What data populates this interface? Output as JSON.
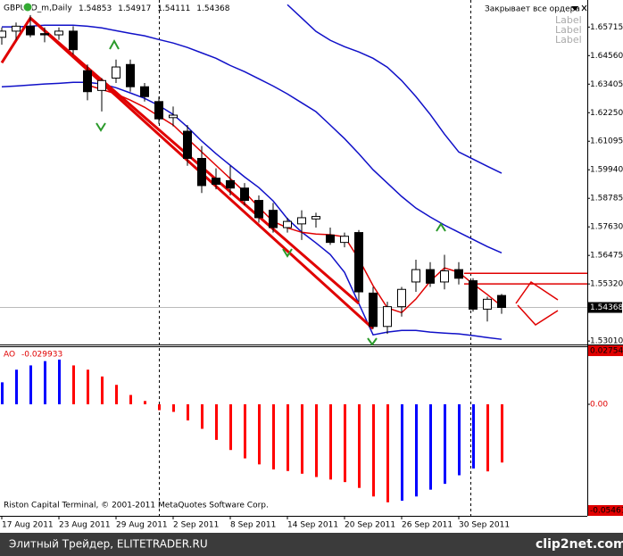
{
  "header": {
    "symbol": "GBPUSD_m,Daily",
    "button": "Закрывает все ордера",
    "labels": [
      "Label",
      "Label",
      "Label"
    ],
    "copyright": "Riston Capital Terminal, © 2001-2011 MetaQuotes Software Corp."
  },
  "footer": {
    "left": "Элитный Трейдер, ELITETRADER.RU",
    "right": "clip2net.com"
  },
  "chart_data": [
    {
      "type": "candlestick",
      "categories": [
        "17 Aug 2011",
        null,
        null,
        null,
        "23 Aug 2011",
        null,
        null,
        null,
        "29 Aug 2011",
        null,
        null,
        null,
        "2 Sep 2011",
        null,
        null,
        null,
        "8 Sep 2011",
        null,
        null,
        null,
        "14 Sep 2011",
        null,
        null,
        null,
        "20 Sep 2011",
        null,
        null,
        null,
        "26 Sep 2011",
        null,
        null,
        null,
        "30 Sep 2011",
        null,
        null,
        null
      ],
      "open": [
        1.653,
        1.6555,
        1.6575,
        1.6545,
        1.654,
        1.6555,
        1.6395,
        1.6315,
        1.6365,
        1.642,
        1.633,
        1.627,
        1.6205,
        1.615,
        1.604,
        1.596,
        1.595,
        1.592,
        1.587,
        1.583,
        1.576,
        1.5775,
        1.5795,
        1.573,
        1.57,
        1.574,
        1.5495,
        1.536,
        1.544,
        1.554,
        1.559,
        1.554,
        1.559,
        1.5545,
        1.543,
        1.54853
      ],
      "high": [
        1.657,
        1.659,
        1.662,
        1.657,
        1.657,
        1.6575,
        1.642,
        1.6365,
        1.644,
        1.644,
        1.6345,
        1.629,
        1.625,
        1.6175,
        1.609,
        1.6,
        1.601,
        1.594,
        1.589,
        1.586,
        1.58,
        1.583,
        1.582,
        1.576,
        1.574,
        1.575,
        1.552,
        1.546,
        1.552,
        1.563,
        1.562,
        1.565,
        1.562,
        1.5555,
        1.548,
        1.54917
      ],
      "low": [
        1.65,
        1.652,
        1.653,
        1.651,
        1.652,
        1.646,
        1.6275,
        1.623,
        1.6345,
        1.631,
        1.627,
        1.618,
        1.617,
        1.601,
        1.59,
        1.5915,
        1.589,
        1.585,
        1.578,
        1.574,
        1.574,
        1.571,
        1.576,
        1.569,
        1.568,
        1.546,
        1.535,
        1.533,
        1.54,
        1.55,
        1.552,
        1.551,
        1.553,
        1.542,
        1.538,
        1.54111
      ],
      "close": [
        1.6555,
        1.6575,
        1.654,
        1.654,
        1.6555,
        1.648,
        1.631,
        1.6355,
        1.641,
        1.633,
        1.629,
        1.62,
        1.6215,
        1.604,
        1.593,
        1.5935,
        1.592,
        1.587,
        1.58,
        1.576,
        1.5785,
        1.58,
        1.5805,
        1.57,
        1.5725,
        1.55,
        1.536,
        1.544,
        1.551,
        1.559,
        1.5535,
        1.5585,
        1.5555,
        1.543,
        1.547,
        1.54368
      ],
      "series": [
        {
          "color": "#1010c8",
          "values": [
            null,
            null,
            null,
            null,
            null,
            null,
            null,
            null,
            null,
            null,
            null,
            null,
            null,
            null,
            null,
            null,
            null,
            null,
            null,
            null,
            1.6662,
            1.6608,
            1.6554,
            1.6518,
            1.6492,
            1.6471,
            1.6445,
            1.6409,
            1.6355,
            1.629,
            1.6218,
            1.6138,
            1.6066,
            1.6037,
            1.6008,
            1.598
          ]
        },
        {
          "color": "#1010c8",
          "values": [
            1.6572,
            1.6572,
            1.6575,
            1.6579,
            1.6579,
            1.6579,
            1.6575,
            1.6568,
            1.6557,
            1.6546,
            1.6536,
            1.6521,
            1.6507,
            1.6489,
            1.6467,
            1.6445,
            1.6416,
            1.6391,
            1.6362,
            1.6333,
            1.6301,
            1.6265,
            1.6229,
            1.6175,
            1.612,
            1.6059,
            1.5994,
            1.594,
            1.5886,
            1.5839,
            1.5803,
            1.577,
            1.5741,
            1.5712,
            1.5683,
            1.5658
          ]
        },
        {
          "color": "#1010c8",
          "values": [
            1.633,
            1.6333,
            1.6337,
            1.6341,
            1.6344,
            1.6348,
            1.6348,
            1.6341,
            1.6326,
            1.6305,
            1.6283,
            1.6254,
            1.6218,
            1.6167,
            1.611,
            1.6059,
            1.6012,
            1.5965,
            1.5922,
            1.5868,
            1.5796,
            1.5742,
            1.5698,
            1.5651,
            1.5579,
            1.5453,
            1.5326,
            1.5337,
            1.5344,
            1.5344,
            1.5337,
            1.5333,
            1.533,
            1.5323,
            1.5315,
            1.5308
          ]
        },
        {
          "color": "#e00000",
          "values": [
            null,
            null,
            null,
            null,
            null,
            null,
            1.6337,
            1.6319,
            1.6301,
            1.6276,
            1.6247,
            1.6211,
            1.6175,
            1.612,
            1.6066,
            1.6012,
            1.5958,
            1.5904,
            1.5842,
            1.5785,
            1.5759,
            1.5741,
            1.5734,
            1.5731,
            1.5723,
            1.5633,
            1.5525,
            1.5435,
            1.5416,
            1.5471,
            1.5543,
            1.5597,
            1.5579,
            1.5532,
            1.5489,
            1.5442
          ]
        },
        {
          "color": "#e00000",
          "width": 3,
          "x": [
            0,
            2,
            26
          ],
          "values": [
            1.6427,
            1.6608,
            1.5351
          ]
        },
        {
          "color": "#e00000",
          "width": 3,
          "x": [
            2,
            25
          ],
          "values": [
            1.6608,
            1.5453
          ]
        }
      ],
      "levels": [
        1.5575,
        1.5532
      ],
      "level_color": "#e00000",
      "ylim": [
        1.5287,
        1.6681
      ],
      "yticks": [
        1.65715,
        {
          "value": 1.6456,
          "label": "1.64560"
        },
        1.63405,
        {
          "value": 1.6225,
          "label": "1.62250"
        },
        1.61095,
        {
          "value": 1.5994,
          "label": "1.59940"
        },
        1.58785,
        {
          "value": 1.5763,
          "label": "1.57630"
        },
        1.56475,
        {
          "value": 1.5532,
          "label": "1.55320"
        },
        {
          "value": 1.5301,
          "label": "1.53010"
        }
      ]
    },
    {
      "type": "bar",
      "name": "AO",
      "values": [
        0.0113,
        0.0178,
        0.02,
        0.0222,
        0.023,
        0.02,
        0.0178,
        0.0143,
        0.01,
        0.0048,
        0.0017,
        -0.003,
        -0.0039,
        -0.0083,
        -0.0126,
        -0.0183,
        -0.0235,
        -0.0278,
        -0.0309,
        -0.0335,
        -0.0343,
        -0.0357,
        -0.0374,
        -0.0387,
        -0.04,
        -0.043,
        -0.0474,
        -0.0504,
        -0.0496,
        -0.0474,
        -0.0439,
        -0.0409,
        -0.0365,
        -0.033,
        -0.0345,
        -0.029933
      ],
      "colors": [
        "#0000ff",
        "#0000ff",
        "#0000ff",
        "#0000ff",
        "#0000ff",
        "#ff0000",
        "#ff0000",
        "#ff0000",
        "#ff0000",
        "#ff0000",
        "#ff0000",
        "#ff0000",
        "#ff0000",
        "#ff0000",
        "#ff0000",
        "#ff0000",
        "#ff0000",
        "#ff0000",
        "#ff0000",
        "#ff0000",
        "#ff0000",
        "#ff0000",
        "#ff0000",
        "#ff0000",
        "#ff0000",
        "#ff0000",
        "#ff0000",
        "#ff0000",
        "#0000ff",
        "#0000ff",
        "#0000ff",
        "#0000ff",
        "#0000ff",
        "#0000ff",
        "#ff0000",
        "#ff0000"
      ],
      "ylim": [
        -0.05461,
        0.027549
      ],
      "yticks": [
        0.027549,
        {
          "value": 0,
          "label": "0.00"
        },
        -0.05461
      ]
    }
  ]
}
